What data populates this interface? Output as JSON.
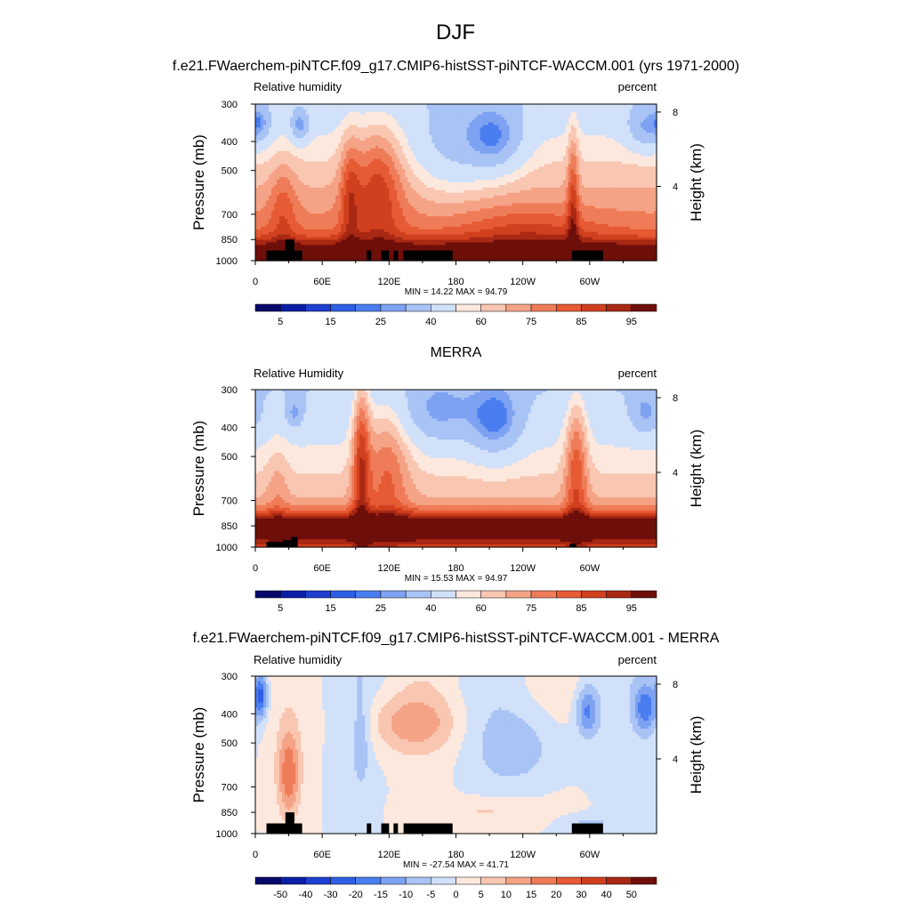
{
  "figure": {
    "title": "DJF"
  },
  "colors": {
    "rh_levels": [
      "#08086b",
      "#0a1ea6",
      "#1f3fd0",
      "#2f5ee6",
      "#4a7ef0",
      "#7ea2f2",
      "#a9c3f5",
      "#d1e1f9",
      "#fde8de",
      "#f9c6b1",
      "#f5a386",
      "#ef7c58",
      "#e65a34",
      "#d1401e",
      "#a82814",
      "#6e0f0a"
    ],
    "diff_levels": [
      "#08086b",
      "#0a1ea6",
      "#1f3fd0",
      "#2f5ee6",
      "#4a7ef0",
      "#7ea2f2",
      "#a9c3f5",
      "#d1e1f9",
      "#fde8de",
      "#f9c6b1",
      "#f5a386",
      "#ef7c58",
      "#e65a34",
      "#d1401e",
      "#a82814",
      "#6e0f0a"
    ],
    "terrain": "#000000"
  },
  "chart_data": [
    {
      "type": "heatmap",
      "title": "f.e21.FWaerchem-piNTCF.f09_g17.CMIP6-histSST-piNTCF-WACCM.001 (yrs 1971-2000)",
      "left_label": "Relative humidity",
      "right_label": "percent",
      "ylabel": "Pressure (mb)",
      "ylabel_right": "Height (km)",
      "x_ticks": [
        "0",
        "60E",
        "120E",
        "180",
        "120W",
        "60W"
      ],
      "x_tick_values": [
        0,
        60,
        120,
        180,
        240,
        300
      ],
      "xlim": [
        0,
        360
      ],
      "y_ticks": [
        "300",
        "400",
        "500",
        "700",
        "850",
        "1000"
      ],
      "y_tick_values": [
        300,
        400,
        500,
        700,
        850,
        1000
      ],
      "ylim": [
        300,
        1000
      ],
      "y_scale": "log",
      "height_ticks": [
        "8",
        "4"
      ],
      "height_tick_values": [
        8,
        4
      ],
      "stats": "MIN = 14.22  MAX = 94.79",
      "min": 14.22,
      "max": 94.79,
      "colorbar_labels": [
        "5",
        "15",
        "25",
        "40",
        "60",
        "75",
        "85",
        "95"
      ],
      "colorbar_label_positions": [
        1,
        3,
        5,
        7,
        9,
        11,
        13,
        15
      ],
      "field": "model",
      "terrain_blocks": [
        {
          "lon": [
            10,
            42
          ],
          "p_top": 925
        },
        {
          "lon": [
            27,
            35
          ],
          "p_top": 850
        },
        {
          "lon": [
            100,
            104
          ],
          "p_top": 925
        },
        {
          "lon": [
            113,
            120
          ],
          "p_top": 925
        },
        {
          "lon": [
            124,
            128
          ],
          "p_top": 925
        },
        {
          "lon": [
            133,
            177
          ],
          "p_top": 925
        },
        {
          "lon": [
            284,
            312
          ],
          "p_top": 925
        }
      ]
    },
    {
      "type": "heatmap",
      "title": "MERRA",
      "left_label": "Relative Humidity",
      "right_label": "percent",
      "ylabel": "Pressure (mb)",
      "ylabel_right": "Height (km)",
      "x_ticks": [
        "0",
        "60E",
        "120E",
        "180",
        "120W",
        "60W"
      ],
      "x_tick_values": [
        0,
        60,
        120,
        180,
        240,
        300
      ],
      "xlim": [
        0,
        360
      ],
      "y_ticks": [
        "300",
        "400",
        "500",
        "700",
        "850",
        "1000"
      ],
      "y_tick_values": [
        300,
        400,
        500,
        700,
        850,
        1000
      ],
      "ylim": [
        300,
        1000
      ],
      "y_scale": "log",
      "height_ticks": [
        "8",
        "4"
      ],
      "height_tick_values": [
        8,
        4
      ],
      "stats": "MIN = 15.53  MAX = 94.97",
      "min": 15.53,
      "max": 94.97,
      "colorbar_labels": [
        "5",
        "15",
        "25",
        "40",
        "60",
        "75",
        "85",
        "95"
      ],
      "colorbar_label_positions": [
        1,
        3,
        5,
        7,
        9,
        11,
        13,
        15
      ],
      "field": "obs",
      "terrain_blocks": [
        {
          "lon": [
            10,
            32
          ],
          "p_top": 960
        },
        {
          "lon": [
            25,
            32
          ],
          "p_top": 945
        },
        {
          "lon": [
            32,
            38
          ],
          "p_top": 925
        },
        {
          "lon": [
            282,
            288
          ],
          "p_top": 975
        }
      ]
    },
    {
      "type": "heatmap",
      "title": "f.e21.FWaerchem-piNTCF.f09_g17.CMIP6-histSST-piNTCF-WACCM.001 - MERRA",
      "left_label": "Relative humidity",
      "right_label": "percent",
      "ylabel": "Pressure (mb)",
      "ylabel_right": "Height (km)",
      "x_ticks": [
        "0",
        "60E",
        "120E",
        "180",
        "120W",
        "60W"
      ],
      "x_tick_values": [
        0,
        60,
        120,
        180,
        240,
        300
      ],
      "xlim": [
        0,
        360
      ],
      "y_ticks": [
        "300",
        "400",
        "500",
        "700",
        "850",
        "1000"
      ],
      "y_tick_values": [
        300,
        400,
        500,
        700,
        850,
        1000
      ],
      "ylim": [
        300,
        1000
      ],
      "y_scale": "log",
      "height_ticks": [
        "8",
        "4"
      ],
      "height_tick_values": [
        8,
        4
      ],
      "stats": "MIN = -27.54  MAX = 41.71",
      "min": -27.54,
      "max": 41.71,
      "colorbar_labels": [
        "-50",
        "-40",
        "-30",
        "-20",
        "-15",
        "-10",
        "-5",
        "0",
        "5",
        "10",
        "15",
        "20",
        "30",
        "40",
        "50"
      ],
      "colorbar_label_positions": [
        1,
        2,
        3,
        4,
        5,
        6,
        7,
        8,
        9,
        10,
        11,
        12,
        13,
        14,
        15
      ],
      "field": "diff",
      "terrain_blocks": [
        {
          "lon": [
            10,
            42
          ],
          "p_top": 925
        },
        {
          "lon": [
            27,
            35
          ],
          "p_top": 850
        },
        {
          "lon": [
            100,
            104
          ],
          "p_top": 925
        },
        {
          "lon": [
            113,
            120
          ],
          "p_top": 925
        },
        {
          "lon": [
            124,
            128
          ],
          "p_top": 925
        },
        {
          "lon": [
            133,
            177
          ],
          "p_top": 925
        },
        {
          "lon": [
            284,
            312
          ],
          "p_top": 925
        }
      ]
    }
  ]
}
